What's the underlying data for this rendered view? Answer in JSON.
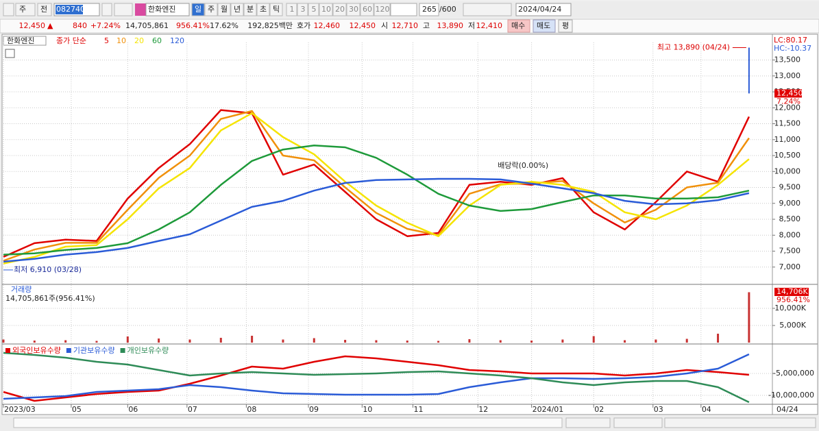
{
  "toolbar": {
    "market": "주",
    "mode": "전",
    "code": "082740",
    "name": "한화엔진",
    "periods": [
      "일",
      "주",
      "월",
      "년",
      "분",
      "초",
      "틱"
    ],
    "intervals": [
      "1",
      "3",
      "5",
      "10",
      "20",
      "30",
      "60",
      "120"
    ],
    "count": "265",
    "max": "/600",
    "date": "2024/04/24"
  },
  "quote": {
    "price": "12,450",
    "arrow": "▲",
    "change": "840",
    "change_pct": "+7.24%",
    "volume": "14,705,861",
    "volume_pct": "956.41%",
    "turnover": "17.62%",
    "amount": "192,825백만",
    "bid_label": "호가",
    "ask": "12,460",
    "bid": "12,450",
    "open_label": "시",
    "open": "12,710",
    "high_label": "고",
    "high": "13,890",
    "low_label": "저",
    "low": "12,410",
    "buy": "매수",
    "sell": "매도",
    "avg": "평"
  },
  "chart_data": [
    {
      "type": "line",
      "title": "한화엔진",
      "legend_prefix": "종가 단순",
      "lc": "LC:80.17",
      "hc": "HC:-10.37",
      "x": [
        0,
        11,
        22,
        33,
        44,
        55,
        66,
        77,
        88,
        99,
        110,
        121,
        132,
        143,
        154,
        165,
        176,
        187,
        198,
        209,
        220,
        231,
        242,
        253,
        264
      ],
      "xlim": [
        0,
        265
      ],
      "xticks": [
        {
          "value": 0,
          "label": "2023/03"
        },
        {
          "value": 24,
          "label": "05"
        },
        {
          "value": 44,
          "label": "06"
        },
        {
          "value": 65,
          "label": "07"
        },
        {
          "value": 86,
          "label": "08"
        },
        {
          "value": 108,
          "label": "09"
        },
        {
          "value": 127,
          "label": "10"
        },
        {
          "value": 145,
          "label": "11"
        },
        {
          "value": 168,
          "label": "12"
        },
        {
          "value": 187,
          "label": "2024/01"
        },
        {
          "value": 209,
          "label": "02"
        },
        {
          "value": 230,
          "label": "03"
        },
        {
          "value": 247,
          "label": "04"
        }
      ],
      "x_end_label": "04/24",
      "ylim": [
        6500,
        14050
      ],
      "yticks": [
        {
          "value": 7000,
          "label": "7,000"
        },
        {
          "value": 7500,
          "label": "7,500"
        },
        {
          "value": 8000,
          "label": "8,000"
        },
        {
          "value": 8500,
          "label": "8,500"
        },
        {
          "value": 9000,
          "label": "9,000"
        },
        {
          "value": 9500,
          "label": "9,500"
        },
        {
          "value": 10000,
          "label": "10,000"
        },
        {
          "value": 10500,
          "label": "10,500"
        },
        {
          "value": 11000,
          "label": "11,000"
        },
        {
          "value": 11500,
          "label": "11,500"
        },
        {
          "value": 12000,
          "label": "12,000"
        },
        {
          "value": 12500,
          "label": "12,500"
        },
        {
          "value": 13000,
          "label": "13,000"
        },
        {
          "value": 13500,
          "label": "13,500"
        }
      ],
      "grid": true,
      "series": [
        {
          "name": "5",
          "color": "#e00000",
          "values": [
            7320,
            7750,
            7860,
            7820,
            9150,
            10110,
            10860,
            11930,
            11830,
            9900,
            10220,
            9360,
            8500,
            7970,
            8070,
            9580,
            9680,
            9580,
            9790,
            8720,
            8180,
            9040,
            10000,
            9680,
            11720
          ]
        },
        {
          "name": "10",
          "color": "#f0900a",
          "values": [
            7200,
            7550,
            7760,
            7760,
            8800,
            9800,
            10500,
            11650,
            11900,
            10500,
            10350,
            9500,
            8700,
            8200,
            8000,
            9300,
            9600,
            9630,
            9700,
            9000,
            8400,
            8800,
            9500,
            9650,
            11050
          ]
        },
        {
          "name": "20",
          "color": "#f5e400",
          "values": [
            7110,
            7320,
            7640,
            7690,
            8500,
            9470,
            10110,
            11290,
            11830,
            11080,
            10540,
            9680,
            8930,
            8390,
            7970,
            8930,
            9580,
            9680,
            9580,
            9360,
            8720,
            8500,
            8930,
            9580,
            10390
          ]
        },
        {
          "name": "60",
          "color": "#1e9a3a",
          "values": [
            7390,
            7430,
            7540,
            7600,
            7750,
            8180,
            8720,
            9580,
            10330,
            10690,
            10820,
            10760,
            10430,
            9900,
            9300,
            8930,
            8760,
            8820,
            9040,
            9250,
            9250,
            9150,
            9150,
            9190,
            9400
          ]
        },
        {
          "name": "120",
          "color": "#2a5bd7",
          "values": [
            7170,
            7260,
            7390,
            7470,
            7600,
            7820,
            8030,
            8460,
            8890,
            9080,
            9400,
            9640,
            9730,
            9750,
            9770,
            9770,
            9750,
            9620,
            9470,
            9320,
            9080,
            8970,
            9000,
            9100,
            9320
          ]
        }
      ],
      "high": {
        "x": 264,
        "value": 13890,
        "label": "최고 13,890 (04/24)"
      },
      "low": {
        "x": 0,
        "value": 6910,
        "label": "최저 6,910 (03/28)"
      },
      "dividend": {
        "x": 184,
        "value": 10180,
        "label": "배당락(0.00%)"
      },
      "last": {
        "value": 12450,
        "label": "12,450",
        "change": "7.24%"
      }
    },
    {
      "type": "bar",
      "title": "거래량",
      "subtitle": "14,705,861주(956.41%)",
      "color": "#c83232",
      "x": [
        0,
        11,
        22,
        33,
        44,
        55,
        66,
        77,
        88,
        99,
        110,
        121,
        132,
        143,
        154,
        165,
        176,
        187,
        198,
        209,
        220,
        231,
        242,
        253,
        264
      ],
      "xlim": [
        0,
        265
      ],
      "ylim": [
        0,
        16400
      ],
      "yticks": [
        {
          "value": 5000,
          "label": "5,000K"
        },
        {
          "value": 10000,
          "label": "10,000K"
        }
      ],
      "values": [
        900,
        600,
        700,
        500,
        1800,
        1200,
        900,
        1400,
        2000,
        900,
        1300,
        800,
        700,
        600,
        500,
        1000,
        700,
        600,
        900,
        1900,
        700,
        900,
        1100,
        2600,
        14706
      ],
      "last": {
        "value": 14706,
        "label": "14,706K",
        "change": "956.41%"
      }
    },
    {
      "type": "line",
      "x": [
        0,
        11,
        22,
        33,
        44,
        55,
        66,
        77,
        88,
        99,
        110,
        121,
        132,
        143,
        154,
        165,
        176,
        187,
        198,
        209,
        220,
        231,
        242,
        253,
        264
      ],
      "xlim": [
        0,
        265
      ],
      "ylim": [
        -12030000,
        1250000
      ],
      "yticks": [
        {
          "value": -5000000,
          "label": "-5,000,000"
        },
        {
          "value": -10000000,
          "label": "-10,000,000"
        }
      ],
      "series": [
        {
          "name": "외국인보유수량",
          "color": "#e00000",
          "values": [
            -9220000,
            -11250000,
            -10470000,
            -9690000,
            -9220000,
            -8910000,
            -7340000,
            -5470000,
            -3440000,
            -3910000,
            -2340000,
            -1090000,
            -1560000,
            -2340000,
            -3130000,
            -4220000,
            -4530000,
            -5000000,
            -5000000,
            -5000000,
            -5470000,
            -5000000,
            -4220000,
            -4690000,
            -5310000
          ]
        },
        {
          "name": "기관보유수량",
          "color": "#2a5bd7",
          "values": [
            -10780000,
            -10470000,
            -10160000,
            -9220000,
            -8910000,
            -8590000,
            -7660000,
            -8130000,
            -8910000,
            -9530000,
            -9690000,
            -9840000,
            -9840000,
            -9840000,
            -9690000,
            -8130000,
            -7030000,
            -6090000,
            -6090000,
            -6250000,
            -6090000,
            -5780000,
            -5000000,
            -3910000,
            -630000
          ]
        },
        {
          "name": "개인보유수량",
          "color": "#2e8b57",
          "values": [
            -310000,
            -780000,
            -1410000,
            -2340000,
            -2970000,
            -4220000,
            -5470000,
            -5000000,
            -4690000,
            -5000000,
            -5310000,
            -5160000,
            -5000000,
            -4690000,
            -4530000,
            -5000000,
            -5470000,
            -6090000,
            -7030000,
            -7660000,
            -7030000,
            -6720000,
            -6720000,
            -8130000,
            -11560000
          ]
        }
      ]
    }
  ]
}
